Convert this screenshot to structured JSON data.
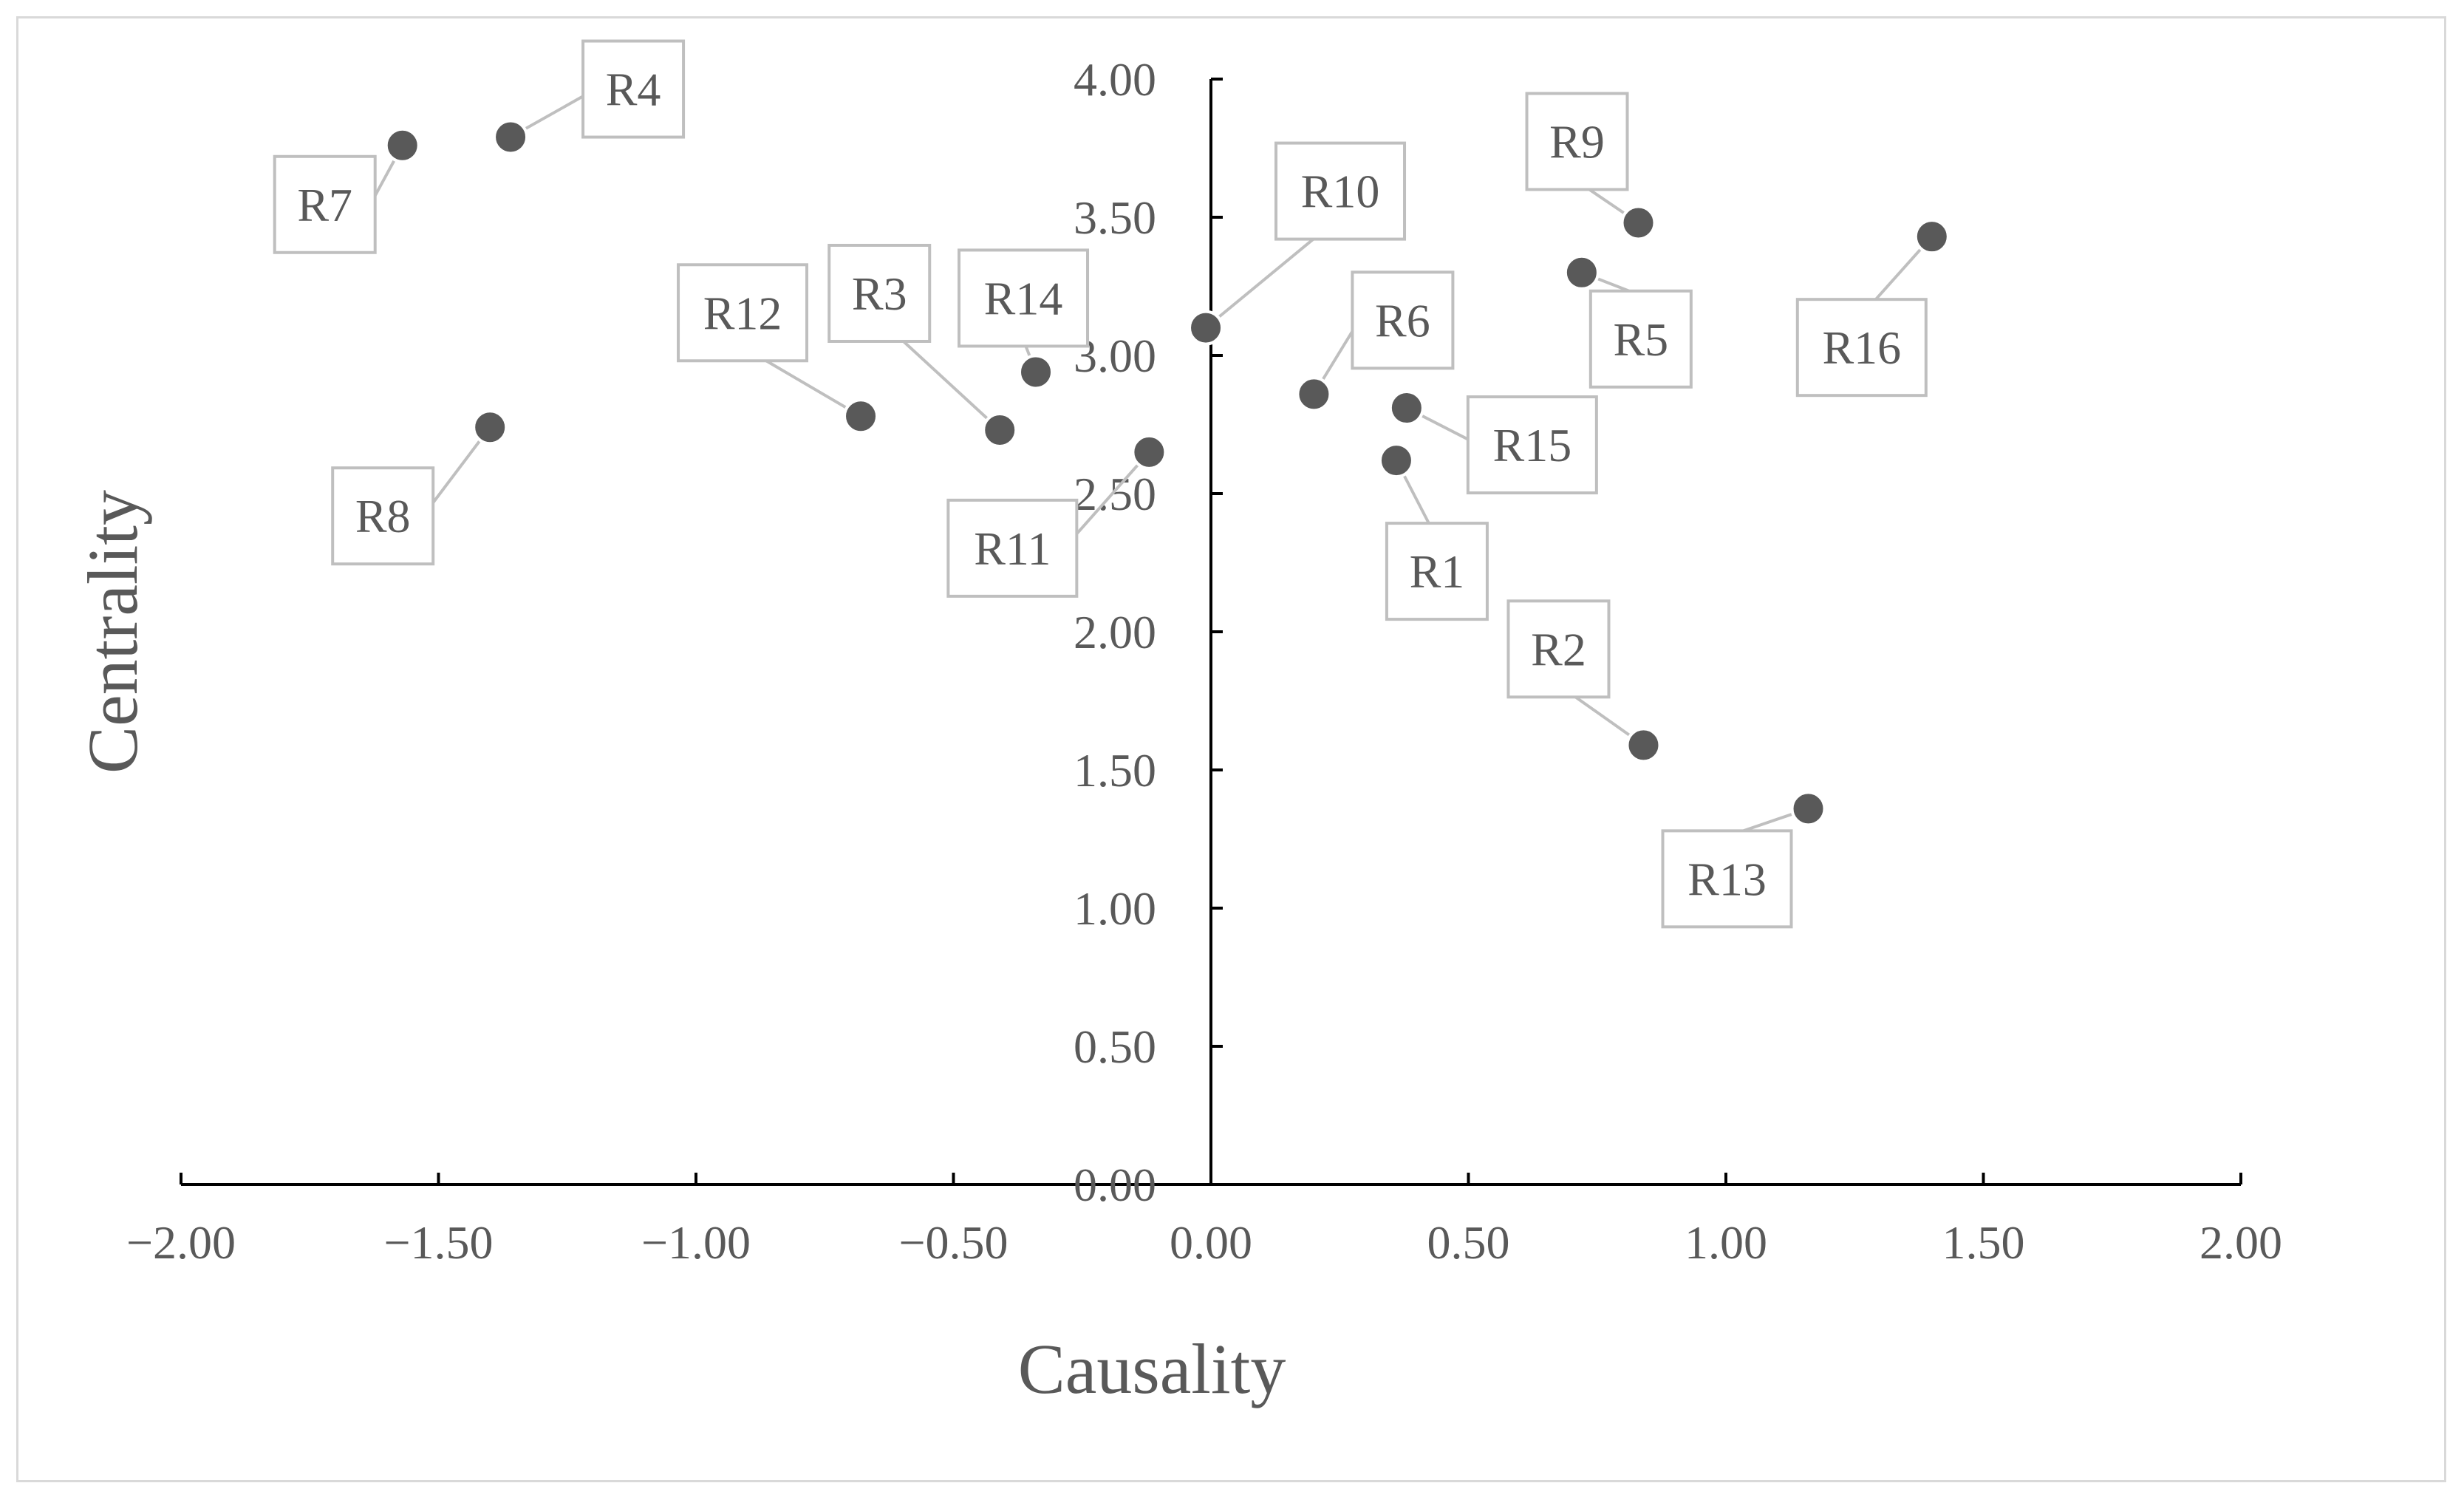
{
  "chart_data": {
    "type": "scatter",
    "title": "",
    "xlabel": "Causality",
    "ylabel": "Centrality",
    "xlim": [
      -2.0,
      2.0
    ],
    "ylim": [
      0.0,
      4.0
    ],
    "x_ticks": [
      -2.0,
      -1.5,
      -1.0,
      -0.5,
      0.0,
      0.5,
      1.0,
      1.5,
      2.0
    ],
    "y_ticks": [
      0.0,
      0.5,
      1.0,
      1.5,
      2.0,
      2.5,
      3.0,
      3.5,
      4.0
    ],
    "x_tick_labels": [
      "−2.00",
      "−1.50",
      "−1.00",
      "−0.50",
      "0.00",
      "0.50",
      "1.00",
      "1.50",
      "2.00"
    ],
    "y_tick_labels": [
      "0.00",
      "0.50",
      "1.00",
      "1.50",
      "2.00",
      "2.50",
      "3.00",
      "3.50",
      "4.00"
    ],
    "grid": false,
    "marker_color": "#595959",
    "points": [
      {
        "label": "R1",
        "x": 0.36,
        "y": 2.62
      },
      {
        "label": "R2",
        "x": 0.84,
        "y": 1.59
      },
      {
        "label": "R3",
        "x": -0.41,
        "y": 2.73
      },
      {
        "label": "R4",
        "x": -1.36,
        "y": 3.79
      },
      {
        "label": "R5",
        "x": 0.72,
        "y": 3.3
      },
      {
        "label": "R6",
        "x": 0.2,
        "y": 2.86
      },
      {
        "label": "R7",
        "x": -1.57,
        "y": 3.76
      },
      {
        "label": "R8",
        "x": -1.4,
        "y": 2.74
      },
      {
        "label": "R9",
        "x": 0.83,
        "y": 3.48
      },
      {
        "label": "R10",
        "x": -0.01,
        "y": 3.1
      },
      {
        "label": "R11",
        "x": -0.12,
        "y": 2.65
      },
      {
        "label": "R12",
        "x": -0.68,
        "y": 2.78
      },
      {
        "label": "R13",
        "x": 1.16,
        "y": 1.36
      },
      {
        "label": "R14",
        "x": -0.34,
        "y": 2.94
      },
      {
        "label": "R15",
        "x": 0.38,
        "y": 2.81
      },
      {
        "label": "R16",
        "x": 1.4,
        "y": 3.43
      }
    ]
  }
}
